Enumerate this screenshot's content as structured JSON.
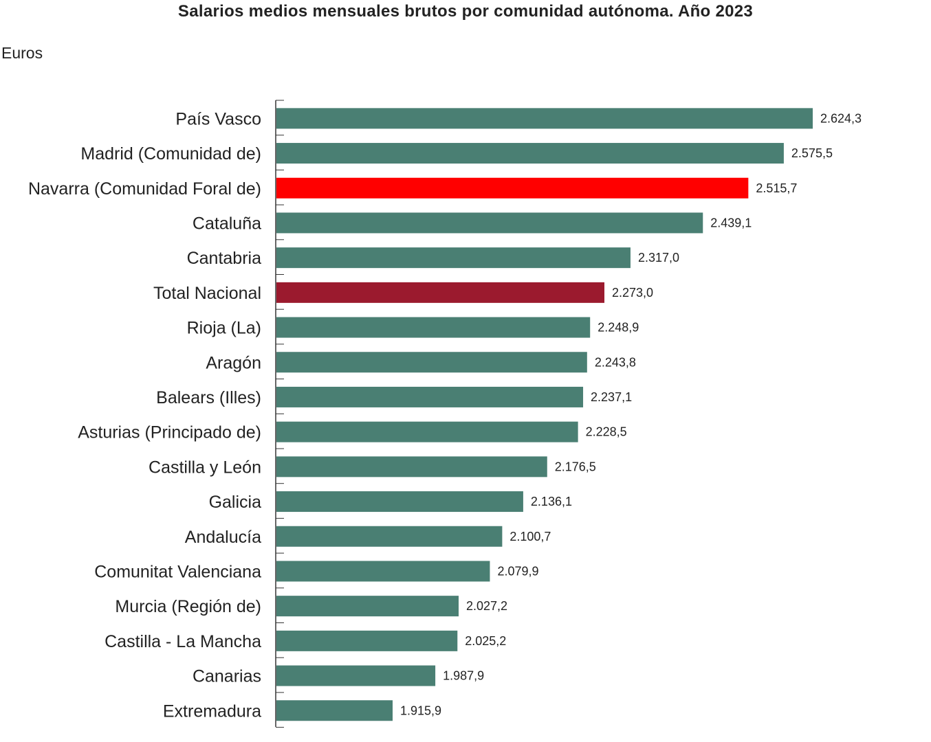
{
  "title": "Salarios medios mensuales brutos por comunidad autónoma. Año 2023",
  "unit_label": "Euros",
  "colors": {
    "default_bar": "#4a7f73",
    "highlight_bar": "#ff0000",
    "total_bar": "#9b1a2e",
    "axis": "#333333"
  },
  "chart_data": {
    "type": "bar",
    "orientation": "horizontal",
    "title": "Salarios medios mensuales brutos por comunidad autónoma. Año 2023",
    "ylabel": "Euros",
    "xlabel": "",
    "categories": [
      "País Vasco",
      "Madrid (Comunidad de)",
      "Navarra (Comunidad Foral de)",
      "Cataluña",
      "Cantabria",
      "Total Nacional",
      "Rioja (La)",
      "Aragón",
      "Balears (Illes)",
      "Asturias (Principado de)",
      "Castilla y León",
      "Galicia",
      "Andalucía",
      "Comunitat Valenciana",
      "Murcia (Región de)",
      "Castilla - La Mancha",
      "Canarias",
      "Extremadura"
    ],
    "values": [
      2624.3,
      2575.5,
      2515.7,
      2439.1,
      2317.0,
      2273.0,
      2248.9,
      2243.8,
      2237.1,
      2228.5,
      2176.5,
      2136.1,
      2100.7,
      2079.9,
      2027.2,
      2025.2,
      1987.9,
      1915.9
    ],
    "value_labels": [
      "2.624,3",
      "2.575,5",
      "2.515,7",
      "2.439,1",
      "2.317,0",
      "2.273,0",
      "2.248,9",
      "2.243,8",
      "2.237,1",
      "2.228,5",
      "2.176,5",
      "2.136,1",
      "2.100,7",
      "2.079,9",
      "2.027,2",
      "2.025,2",
      "1.987,9",
      "1.915,9"
    ],
    "bar_colors": [
      "default",
      "default",
      "highlight",
      "default",
      "default",
      "total",
      "default",
      "default",
      "default",
      "default",
      "default",
      "default",
      "default",
      "default",
      "default",
      "default",
      "default",
      "default"
    ],
    "x_axis_visible": false,
    "grid": false,
    "legend": "none"
  }
}
